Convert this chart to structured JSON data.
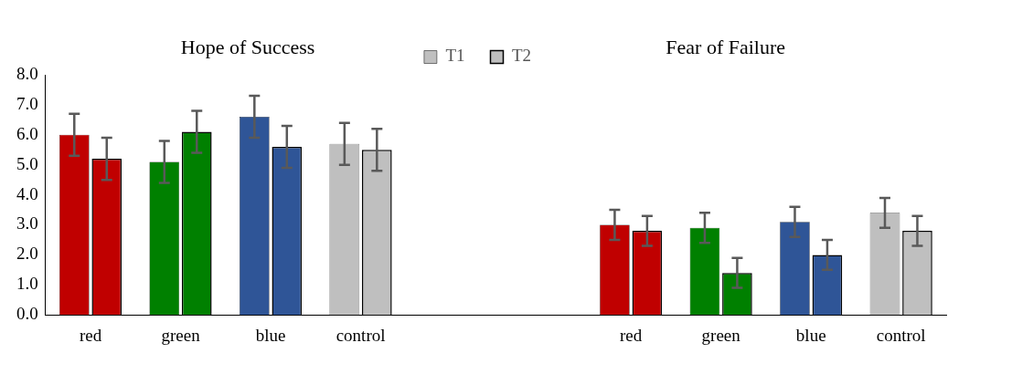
{
  "chart_data": {
    "type": "bar",
    "categories": [
      "red",
      "green",
      "blue",
      "control",
      null,
      null,
      "red",
      "green",
      "blue",
      "control"
    ],
    "series": [
      {
        "name": "T1",
        "colors": [
          "#c00000",
          "#008000",
          "#2f5597",
          "#bfbfbf",
          null,
          null,
          "#c00000",
          "#008000",
          "#2f5597",
          "#bfbfbf"
        ],
        "values": [
          6.0,
          5.1,
          6.6,
          5.7,
          null,
          null,
          3.0,
          2.9,
          3.1,
          3.4
        ],
        "errors": [
          0.7,
          0.7,
          0.7,
          0.7,
          null,
          null,
          0.5,
          0.5,
          0.5,
          0.5
        ]
      },
      {
        "name": "T2",
        "colors": [
          "#c00000",
          "#008000",
          "#2f5597",
          "#bfbfbf",
          null,
          null,
          "#c00000",
          "#008000",
          "#2f5597",
          "#bfbfbf"
        ],
        "values": [
          5.2,
          6.1,
          5.6,
          5.5,
          null,
          null,
          2.8,
          1.4,
          2.0,
          2.8
        ],
        "errors": [
          0.7,
          0.7,
          0.7,
          0.7,
          null,
          null,
          0.5,
          0.5,
          0.5,
          0.5
        ]
      }
    ],
    "ylim": [
      0,
      8
    ],
    "yticks": [
      {
        "value": 0,
        "label": "0.0"
      },
      {
        "value": 1,
        "label": "1.0"
      },
      {
        "value": 2,
        "label": "2.0"
      },
      {
        "value": 3,
        "label": "3.0"
      },
      {
        "value": 4,
        "label": "4.0"
      },
      {
        "value": 5,
        "label": "5.0"
      },
      {
        "value": 6,
        "label": "6.0"
      },
      {
        "value": 7,
        "label": "7.0"
      },
      {
        "value": 8,
        "label": "8.0"
      }
    ],
    "annotations": [
      "Hope of Success",
      "Fear of Failure"
    ],
    "grid": false,
    "legend": "top"
  }
}
